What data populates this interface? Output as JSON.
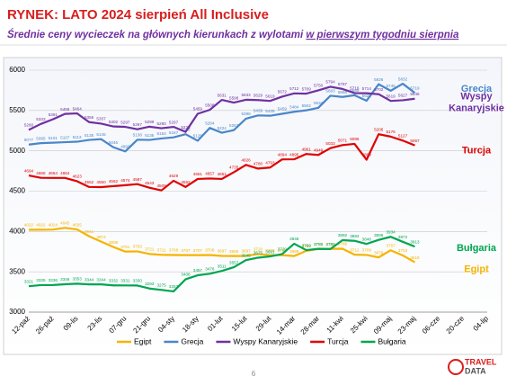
{
  "chart_data": {
    "type": "line",
    "title": "RYNEK: LATO 2024 sierpień All Inclusive",
    "subtitle": "Średnie ceny wycieczek na głównych kierunkach z wylotami",
    "subtitle_underlined": "w pierwszym tygodniu sierpnia",
    "categories": [
      "12-paź",
      null,
      "26-paź",
      null,
      "09-lis",
      null,
      "23-lis",
      null,
      "07-gru",
      null,
      "21-gru",
      null,
      "04-sty",
      null,
      "18-sty",
      null,
      "01-lut",
      null,
      "15-lut",
      null,
      "29-lut",
      null,
      "14-mar",
      null,
      "28-mar",
      null,
      "11-kwi",
      null,
      "25-kwi",
      null,
      "09-maj",
      null,
      "23-maj",
      null,
      "06-cze",
      null,
      "20-cze",
      null,
      "04-lip"
    ],
    "ylim": [
      3000,
      6000
    ],
    "yticks": [
      3000,
      3500,
      4000,
      4500,
      5000,
      5500,
      6000
    ],
    "grid": true,
    "legend": "bottom",
    "series": [
      {
        "name": "Egipt",
        "color": "#f5b400",
        "end_label": [
          "Egipt"
        ],
        "values": [
          4022,
          4022,
          4024,
          4045,
          4025,
          3941,
          3874,
          3808,
          3751,
          3753,
          3721,
          3711,
          3708,
          3707,
          3707,
          3708,
          3697,
          3696,
          3697,
          3720,
          3706,
          3707,
          3696,
          3760,
          3783,
          3785,
          3786,
          3712,
          3709,
          3679,
          3767,
          3703,
          3618,
          null,
          null,
          null,
          null,
          null,
          null
        ]
      },
      {
        "name": "Grecja",
        "color": "#4a86c8",
        "end_label": [
          "Grecja"
        ],
        "values": [
          5077,
          5095,
          5101,
          5107,
          5113,
          5135,
          5145,
          5045,
          4993,
          5138,
          5135,
          5153,
          5167,
          5206,
          5125,
          5284,
          5224,
          5257,
          5398,
          5439,
          5435,
          5459,
          5484,
          5502,
          5534,
          5683,
          5668,
          5689,
          5621,
          5826,
          5745,
          5832,
          5719,
          null,
          null,
          null,
          null,
          null,
          null
        ]
      },
      {
        "name": "Wyspy Kanaryjskie",
        "color": "#7030a0",
        "end_label": [
          "Wyspy",
          "Kanaryjskie"
        ],
        "values": [
          5260,
          5333,
          5391,
          5458,
          5464,
          5356,
          5337,
          5302,
          5297,
          5267,
          5299,
          5280,
          5297,
          5235,
          5459,
          5508,
          5631,
          5598,
          5633,
          5629,
          5619,
          5672,
          5712,
          5709,
          5750,
          5794,
          5767,
          5716,
          5714,
          5702,
          5619,
          5627,
          5646,
          null,
          null,
          null,
          null,
          null,
          null
        ]
      },
      {
        "name": "Turcja",
        "color": "#e00000",
        "end_label": [
          "Turcja"
        ],
        "values": [
          4694,
          4665,
          4664,
          4664,
          4623,
          4552,
          4550,
          4562,
          4574,
          4587,
          4543,
          4509,
          4629,
          4552,
          4651,
          4657,
          4651,
          4735,
          4826,
          4780,
          4793,
          4894,
          4895,
          4961,
          4949,
          5033,
          5071,
          5086,
          4890,
          5206,
          5176,
          5127,
          5067,
          null,
          null,
          null,
          null,
          null,
          null
        ]
      },
      {
        "name": "Bułgaria",
        "color": "#00a550",
        "end_label": [
          "Bułgaria"
        ],
        "values": [
          3321,
          3335,
          3336,
          3346,
          3353,
          3344,
          3344,
          3332,
          3331,
          3330,
          3293,
          3275,
          3257,
          3408,
          3457,
          3476,
          3511,
          3557,
          3645,
          3675,
          3691,
          3720,
          3848,
          3769,
          3785,
          3782,
          3892,
          3884,
          3846,
          3896,
          3934,
          3872,
          3813,
          null,
          null,
          null,
          null,
          null,
          null
        ]
      }
    ],
    "page_number": "6",
    "logo": [
      "TRAVEL",
      "DATA"
    ]
  }
}
